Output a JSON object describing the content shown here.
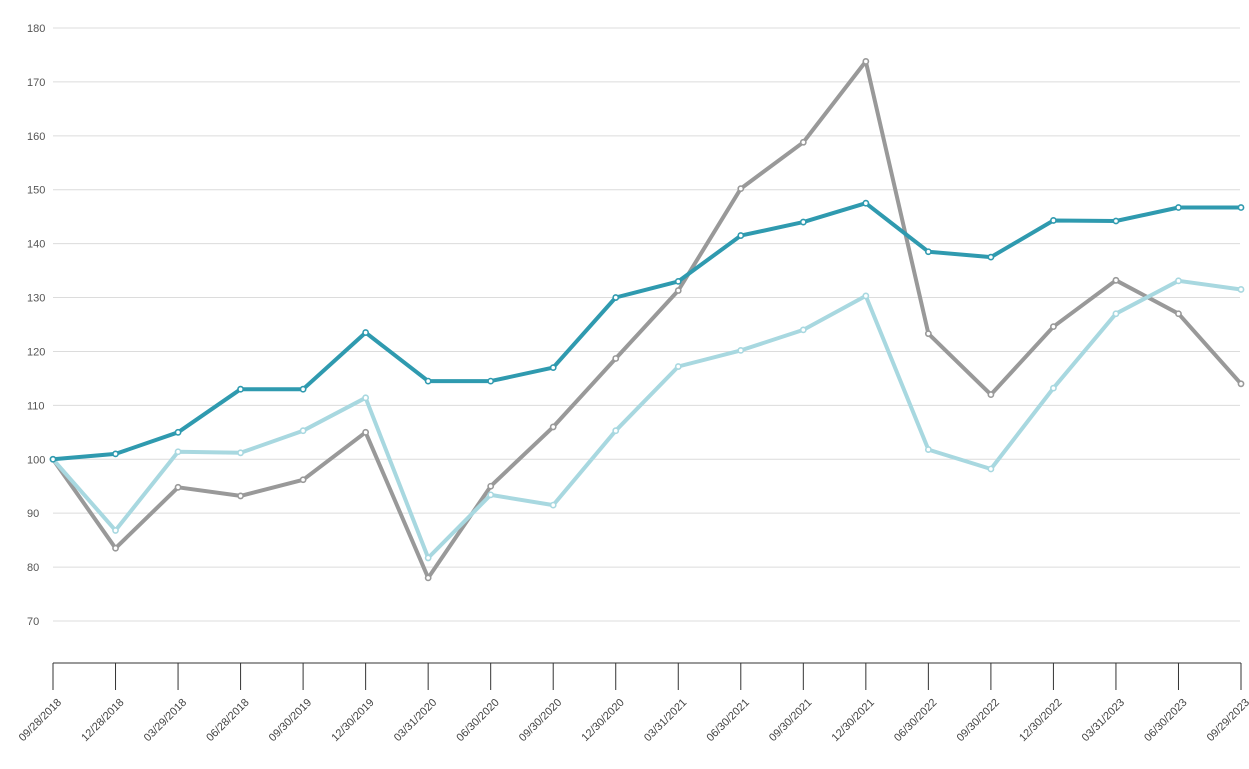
{
  "chart_data": {
    "type": "line",
    "title": "",
    "xlabel": "",
    "ylabel": "",
    "ylim": [
      70,
      180
    ],
    "grid": true,
    "legend": "none",
    "y_ticks": [
      180,
      170,
      160,
      150,
      140,
      130,
      120,
      110,
      100,
      90,
      80,
      70
    ],
    "categories": [
      "09/28/2018",
      "12/28/2018",
      "03/29/2018",
      "06/28/2018",
      "09/30/2019",
      "12/30/2019",
      "03/31/2020",
      "06/30/2020",
      "09/30/2020",
      "12/30/2020",
      "03/31/2021",
      "06/30/2021",
      "09/30/2021",
      "12/30/2021",
      "06/30/2022",
      "09/30/2022",
      "12/30/2022",
      "03/31/2023",
      "06/30/2023",
      "09/29/2023"
    ],
    "series": [
      {
        "color": "#2f9aaf",
        "values": [
          100,
          101,
          105,
          113,
          113,
          123.5,
          114.5,
          114.5,
          117,
          130,
          133,
          141.5,
          144,
          147.5,
          138.5,
          137.5,
          144.3,
          144.2,
          146.7,
          146.7
        ]
      },
      {
        "color": "#999999",
        "values": [
          100,
          83.5,
          94.8,
          93.2,
          96.2,
          105,
          78,
          95,
          106,
          118.7,
          131.3,
          150.2,
          158.8,
          173.8,
          123.3,
          112,
          124.6,
          133.2,
          127,
          114
        ]
      },
      {
        "color": "#a8d8e0",
        "values": [
          100,
          86.8,
          101.4,
          101.2,
          105.3,
          111.4,
          81.7,
          93.4,
          91.5,
          105.3,
          117.2,
          120.2,
          124,
          130.3,
          101.8,
          98.2,
          113.2,
          127,
          133.1,
          131.5
        ]
      }
    ]
  }
}
